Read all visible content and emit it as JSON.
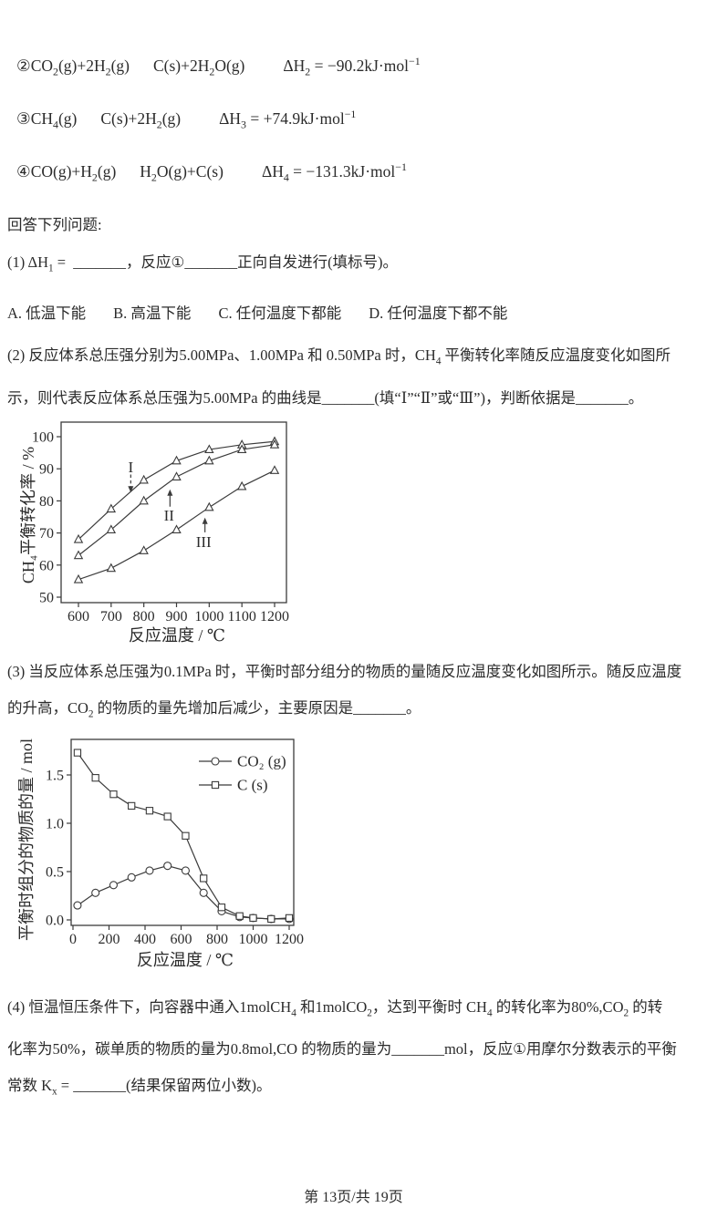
{
  "page": {
    "footer": "第 13页/共 19页",
    "ink_color": "#2b2b2b",
    "paper_color": "#ffffff",
    "chart_stroke": "#3b3b3b"
  },
  "equations": [
    {
      "lhs": "②CO~2~(g)+2H~2~(g)",
      "rhs": "C(s)+2H~2~O(g)",
      "dh": "ΔH~2~ = −90.2kJ·mol^−1^"
    },
    {
      "lhs": "③CH~4~(g)",
      "rhs": "C(s)+2H~2~(g)",
      "dh": "ΔH~3~ = +74.9kJ·mol^−1^"
    },
    {
      "lhs": "④CO(g)+H~2~(g)",
      "rhs": "H~2~O(g)+C(s)",
      "dh": "ΔH~4~ = −131.3kJ·mol^−1^"
    }
  ],
  "intro": "回答下列问题:",
  "q1": {
    "text": "(1) ΔH~1~ =  _______，反应①_______正向自发进行(填标号)。"
  },
  "options": [
    "A. 低温下能",
    "B. 高温下能",
    "C. 任何温度下都能",
    "D. 任何温度下都不能"
  ],
  "q2": {
    "lines": [
      "(2) 反应体系总压强分别为5.00MPa、1.00MPa 和 0.50MPa 时，CH~4~ 平衡转化率随反应温度变化如图所",
      "示，则代表反应体系总压强为5.00MPa 的曲线是_______(填“Ⅰ”“Ⅱ”或“Ⅲ”)，判断依据是_______。"
    ]
  },
  "q3": {
    "lines": [
      "(3) 当反应体系总压强为0.1MPa 时，平衡时部分组分的物质的量随反应温度变化如图所示。随反应温度",
      "的升高，CO~2~ 的物质的量先增加后减少，主要原因是_______。"
    ]
  },
  "q4": {
    "lines": [
      "(4) 恒温恒压条件下，向容器中通入1molCH~4~ 和1molCO~2~，达到平衡时 CH~4~ 的转化率为80%,CO~2~ 的转",
      "化率为50%，碳单质的物质的量为0.8mol,CO 的物质的量为_______mol，反应①用摩尔分数表示的平衡",
      "常数 K~x~ = _______(结果保留两位小数)。"
    ]
  },
  "chart_data": [
    {
      "type": "line",
      "title": "",
      "xlabel": "反应温度 / ℃",
      "ylabel": "CH₄平衡转化率 / %",
      "xlim": [
        600,
        1200
      ],
      "ylim": [
        50,
        100
      ],
      "grid": false,
      "xticks": [
        {
          "v": 600,
          "l": "600"
        },
        {
          "v": 700,
          "l": "700"
        },
        {
          "v": 800,
          "l": "800"
        },
        {
          "v": 900,
          "l": "900"
        },
        {
          "v": 1000,
          "l": "1000"
        },
        {
          "v": 1100,
          "l": "1100"
        },
        {
          "v": 1200,
          "l": "1200"
        }
      ],
      "yticks": [
        {
          "v": 50,
          "l": "50"
        },
        {
          "v": 60,
          "l": "60"
        },
        {
          "v": 70,
          "l": "70"
        },
        {
          "v": 80,
          "l": "80"
        },
        {
          "v": 90,
          "l": "90"
        },
        {
          "v": 100,
          "l": "100"
        }
      ],
      "series": [
        {
          "name": "I",
          "marker": "triangle",
          "x": [
            600,
            700,
            800,
            900,
            1000,
            1100,
            1200
          ],
          "y": [
            68,
            77.5,
            86.5,
            92.5,
            96,
            97.5,
            98.5
          ]
        },
        {
          "name": "II",
          "marker": "triangle",
          "x": [
            600,
            700,
            800,
            900,
            1000,
            1100,
            1200
          ],
          "y": [
            63,
            71,
            80,
            87.5,
            92.5,
            96,
            97.5
          ]
        },
        {
          "name": "III",
          "marker": "triangle",
          "x": [
            600,
            700,
            800,
            900,
            1000,
            1100,
            1200
          ],
          "y": [
            55.5,
            59,
            64.5,
            71,
            78,
            84.5,
            89.5
          ]
        }
      ],
      "annotations": [
        {
          "label": "I",
          "x": 760,
          "label_y": 90.6,
          "arrow_x": 760,
          "arrow_from_y": 88.2,
          "arrow_to_y": 82.6,
          "dashed": true
        },
        {
          "label": "II",
          "x": 877,
          "label_y": 75.6,
          "arrow_x": 880,
          "arrow_from_y": 78.2,
          "arrow_to_y": 83.6,
          "dashed": false
        },
        {
          "label": "III",
          "x": 983,
          "label_y": 67.4,
          "arrow_x": 987,
          "arrow_from_y": 70.2,
          "arrow_to_y": 74.8,
          "dashed": false
        }
      ],
      "legend": null
    },
    {
      "type": "line",
      "title": "",
      "xlabel": "反应温度 / ℃",
      "ylabel": "平衡时组分的物质的量 / mol",
      "xlim": [
        0,
        1200
      ],
      "ylim": [
        0,
        1.85
      ],
      "grid": false,
      "xticks": [
        {
          "v": 0,
          "l": "0"
        },
        {
          "v": 200,
          "l": "200"
        },
        {
          "v": 400,
          "l": "400"
        },
        {
          "v": 600,
          "l": "600"
        },
        {
          "v": 800,
          "l": "800"
        },
        {
          "v": 1000,
          "l": "1000"
        },
        {
          "v": 1200,
          "l": "1200"
        }
      ],
      "yticks": [
        {
          "v": 0.0,
          "l": "0.0"
        },
        {
          "v": 0.5,
          "l": "0.5"
        },
        {
          "v": 1.0,
          "l": "1.0"
        },
        {
          "v": 1.5,
          "l": "1.5"
        }
      ],
      "series": [
        {
          "name": "CO₂ (g)",
          "marker": "circle",
          "x": [
            25,
            125,
            225,
            325,
            425,
            525,
            625,
            725,
            825,
            925,
            1000,
            1100,
            1200
          ],
          "y": [
            0.15,
            0.28,
            0.36,
            0.44,
            0.51,
            0.56,
            0.51,
            0.28,
            0.09,
            0.03,
            0.02,
            0.01,
            0.01
          ]
        },
        {
          "name": "C (s)",
          "marker": "square",
          "x": [
            25,
            125,
            225,
            325,
            425,
            525,
            625,
            725,
            825,
            925,
            1000,
            1100,
            1200
          ],
          "y": [
            1.73,
            1.47,
            1.3,
            1.18,
            1.13,
            1.07,
            0.87,
            0.43,
            0.13,
            0.04,
            0.02,
            0.01,
            0.02
          ]
        }
      ],
      "annotations": [],
      "legend": {
        "position": "top-right",
        "items": [
          {
            "name": "CO₂ (g)",
            "marker": "circle"
          },
          {
            "name": "C (s)",
            "marker": "square"
          }
        ]
      }
    }
  ]
}
